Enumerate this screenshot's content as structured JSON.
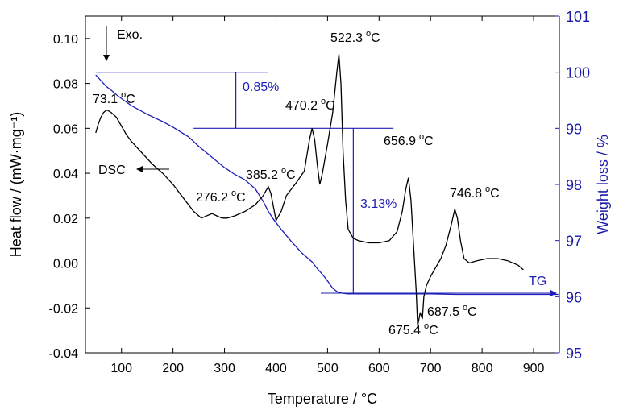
{
  "chart_data": {
    "type": "line",
    "xlabel": "Temperature / °C",
    "xlim": [
      30,
      950
    ],
    "xticks": [
      100,
      200,
      300,
      400,
      500,
      600,
      700,
      800,
      900
    ],
    "y_left": {
      "label": "Heat flow / (mW·mg⁻¹)",
      "lim": [
        -0.04,
        0.11
      ],
      "ticks": [
        -0.04,
        -0.02,
        0.0,
        0.02,
        0.04,
        0.06,
        0.08,
        0.1
      ],
      "tick_labels": [
        "-0.04",
        "-0.02",
        "0.00",
        "0.02",
        "0.04",
        "0.06",
        "0.08",
        "0.10"
      ]
    },
    "y_right": {
      "label": "Weight loss / %",
      "lim": [
        95,
        101
      ],
      "ticks": [
        95,
        96,
        97,
        98,
        99,
        100,
        101
      ],
      "tick_labels": [
        "95",
        "96",
        "97",
        "98",
        "99",
        "100",
        "101"
      ]
    },
    "colors": {
      "dsc": "#000000",
      "tg": "#1f1fb8",
      "right_axis": "#1a1aa8"
    },
    "series": [
      {
        "name": "DSC",
        "axis": "left",
        "x": [
          50,
          55,
          60,
          65,
          70,
          73,
          80,
          90,
          100,
          110,
          120,
          140,
          160,
          180,
          200,
          220,
          240,
          255,
          265,
          276,
          285,
          295,
          305,
          320,
          340,
          360,
          375,
          385,
          390,
          395,
          400,
          410,
          420,
          440,
          455,
          465,
          470,
          475,
          480,
          485,
          490,
          500,
          510,
          518,
          522,
          526,
          530,
          535,
          540,
          550,
          560,
          580,
          600,
          620,
          635,
          645,
          652,
          657,
          662,
          667,
          672,
          675,
          680,
          684,
          687,
          692,
          700,
          710,
          720,
          730,
          740,
          747,
          752,
          758,
          765,
          775,
          790,
          810,
          830,
          850,
          870,
          880
        ],
        "y": [
          0.058,
          0.062,
          0.065,
          0.067,
          0.068,
          0.068,
          0.067,
          0.065,
          0.061,
          0.057,
          0.054,
          0.049,
          0.044,
          0.04,
          0.035,
          0.029,
          0.023,
          0.02,
          0.021,
          0.022,
          0.021,
          0.02,
          0.02,
          0.021,
          0.023,
          0.026,
          0.03,
          0.034,
          0.031,
          0.025,
          0.019,
          0.023,
          0.03,
          0.036,
          0.041,
          0.055,
          0.06,
          0.055,
          0.044,
          0.035,
          0.04,
          0.053,
          0.067,
          0.085,
          0.093,
          0.08,
          0.05,
          0.028,
          0.015,
          0.011,
          0.01,
          0.009,
          0.009,
          0.01,
          0.014,
          0.023,
          0.033,
          0.038,
          0.028,
          0.008,
          -0.012,
          -0.028,
          -0.022,
          -0.025,
          -0.015,
          -0.01,
          -0.006,
          -0.002,
          0.002,
          0.008,
          0.017,
          0.024,
          0.02,
          0.01,
          0.002,
          0.0,
          0.001,
          0.002,
          0.002,
          0.001,
          -0.001,
          -0.003
        ]
      },
      {
        "name": "TG",
        "axis": "right",
        "x": [
          50,
          60,
          70,
          80,
          90,
          100,
          120,
          150,
          180,
          200,
          230,
          250,
          280,
          300,
          320,
          340,
          360,
          375,
          385,
          395,
          410,
          430,
          450,
          470,
          480,
          490,
          500,
          510,
          520,
          530,
          540,
          560,
          600,
          650,
          700,
          750,
          800,
          850,
          900,
          948
        ],
        "y": [
          99.95,
          99.85,
          99.75,
          99.68,
          99.6,
          99.53,
          99.4,
          99.25,
          99.12,
          99.02,
          98.85,
          98.68,
          98.45,
          98.3,
          98.18,
          98.08,
          97.92,
          97.7,
          97.52,
          97.38,
          97.2,
          96.98,
          96.78,
          96.62,
          96.5,
          96.4,
          96.28,
          96.15,
          96.08,
          96.06,
          96.05,
          96.05,
          96.05,
          96.05,
          96.05,
          96.04,
          96.04,
          96.04,
          96.04,
          96.04
        ]
      }
    ],
    "annotations": [
      {
        "id": "exo",
        "text": "Exo.",
        "arrow": "down"
      },
      {
        "id": "dsc_label",
        "text": "DSC",
        "arrow": "left"
      },
      {
        "id": "tg_label",
        "text": "TG",
        "arrow": "right"
      },
      {
        "id": "p73",
        "num": "73.1",
        "unit": "C"
      },
      {
        "id": "p276",
        "num": "276.2",
        "unit": "C"
      },
      {
        "id": "p385",
        "num": "385.2",
        "unit": "C"
      },
      {
        "id": "p470",
        "num": "470.2",
        "unit": "C"
      },
      {
        "id": "p522",
        "num": "522.3",
        "unit": "C"
      },
      {
        "id": "p657",
        "num": "656.9",
        "unit": "C"
      },
      {
        "id": "p747",
        "num": "746.8",
        "unit": "C"
      },
      {
        "id": "p687",
        "num": "687.5",
        "unit": "C"
      },
      {
        "id": "p675",
        "num": "675.4",
        "unit": "C"
      },
      {
        "id": "loss1",
        "text": "0.85%"
      },
      {
        "id": "loss2",
        "text": "3.13%"
      }
    ],
    "step_lines": {
      "step1_top": {
        "y": 100.0,
        "x": [
          50,
          385
        ]
      },
      "step1_bottom": {
        "y": 99.0,
        "x": [
          240,
          628
        ]
      },
      "step1_vertical": {
        "x": 322,
        "y": [
          99.0,
          100.0
        ]
      },
      "step2_bottom": {
        "y": 96.05,
        "x": [
          475,
          948
        ]
      },
      "step2_vertical": {
        "x": 550,
        "y": [
          96.05,
          99.0
        ]
      }
    },
    "grid": false,
    "legend": "none"
  }
}
